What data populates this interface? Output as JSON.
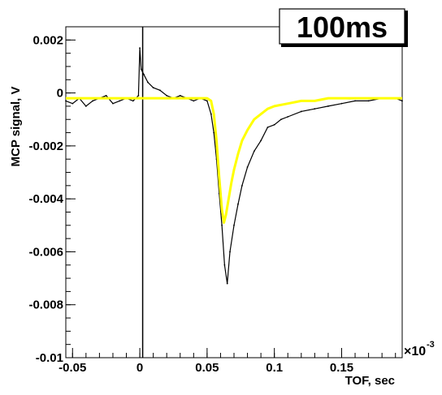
{
  "chart_data": {
    "type": "line",
    "tag_label": "100ms",
    "xlabel": "TOF, sec",
    "ylabel": "MCP signal, V",
    "x_exponent_label": "×10",
    "x_exponent_power": "-3",
    "xlim": [
      -0.055,
      0.195
    ],
    "ylim": [
      -0.01,
      0.0025
    ],
    "x_ticks": [
      {
        "value": -0.05,
        "label": "-0.05"
      },
      {
        "value": 0,
        "label": "0"
      },
      {
        "value": 0.05,
        "label": "0.05"
      },
      {
        "value": 0.1,
        "label": "0.1"
      },
      {
        "value": 0.15,
        "label": "0.15"
      }
    ],
    "y_ticks": [
      {
        "value": 0.002,
        "label": "0.002"
      },
      {
        "value": 0,
        "label": "0"
      },
      {
        "value": -0.002,
        "label": "-0.002"
      },
      {
        "value": -0.004,
        "label": "-0.004"
      },
      {
        "value": -0.006,
        "label": "-0.006"
      },
      {
        "value": -0.008,
        "label": "-0.008"
      },
      {
        "value": -0.01,
        "label": "-0.01"
      }
    ],
    "series": [
      {
        "style": "noisy-histogram",
        "color": "#000000",
        "x": [
          -0.055,
          -0.05,
          -0.045,
          -0.04,
          -0.035,
          -0.03,
          -0.025,
          -0.02,
          -0.015,
          -0.01,
          -0.005,
          -0.001,
          0.0,
          0.001,
          0.003,
          0.006,
          0.01,
          0.015,
          0.02,
          0.025,
          0.03,
          0.035,
          0.04,
          0.045,
          0.05,
          0.053,
          0.055,
          0.057,
          0.059,
          0.061,
          0.063,
          0.065,
          0.067,
          0.07,
          0.073,
          0.076,
          0.08,
          0.085,
          0.09,
          0.095,
          0.1,
          0.105,
          0.11,
          0.12,
          0.13,
          0.14,
          0.15,
          0.16,
          0.17,
          0.18,
          0.19,
          0.195
        ],
        "values": [
          -0.0003,
          -0.0004,
          -0.0002,
          -0.0005,
          -0.0003,
          -0.0002,
          -0.0001,
          -0.0004,
          -0.0003,
          -0.0002,
          -0.0003,
          -0.0001,
          0.0017,
          0.0009,
          0.0007,
          0.0004,
          0.0002,
          0.0001,
          -0.0001,
          -0.0002,
          -0.0001,
          -0.0002,
          -0.0003,
          -0.0002,
          -0.0003,
          -0.0008,
          -0.0015,
          -0.0025,
          -0.0038,
          -0.005,
          -0.0065,
          -0.0072,
          -0.006,
          -0.005,
          -0.0042,
          -0.0035,
          -0.0028,
          -0.0022,
          -0.0018,
          -0.0013,
          -0.0012,
          -0.001,
          -0.0009,
          -0.0007,
          -0.0006,
          -0.0005,
          -0.0004,
          -0.0003,
          -0.0003,
          -0.0002,
          -0.0002,
          -0.0003
        ]
      },
      {
        "style": "fit",
        "color": "#ffff00",
        "x": [
          -0.055,
          -0.04,
          -0.02,
          0.0,
          0.02,
          0.04,
          0.05,
          0.053,
          0.055,
          0.057,
          0.059,
          0.061,
          0.0625,
          0.064,
          0.066,
          0.068,
          0.07,
          0.073,
          0.076,
          0.08,
          0.085,
          0.09,
          0.095,
          0.1,
          0.11,
          0.12,
          0.13,
          0.14,
          0.15,
          0.16,
          0.17,
          0.18,
          0.195
        ],
        "values": [
          -0.0002,
          -0.0002,
          -0.0002,
          -0.0002,
          -0.0002,
          -0.0002,
          -0.0002,
          -0.0003,
          -0.0008,
          -0.0018,
          -0.0032,
          -0.0044,
          -0.0049,
          -0.0046,
          -0.004,
          -0.0034,
          -0.0029,
          -0.0023,
          -0.0018,
          -0.0014,
          -0.001,
          -0.0008,
          -0.0006,
          -0.0005,
          -0.0004,
          -0.0003,
          -0.0003,
          -0.0002,
          -0.0002,
          -0.0002,
          -0.0002,
          -0.0002,
          -0.0002
        ]
      }
    ],
    "grid": false,
    "legend": "none"
  }
}
